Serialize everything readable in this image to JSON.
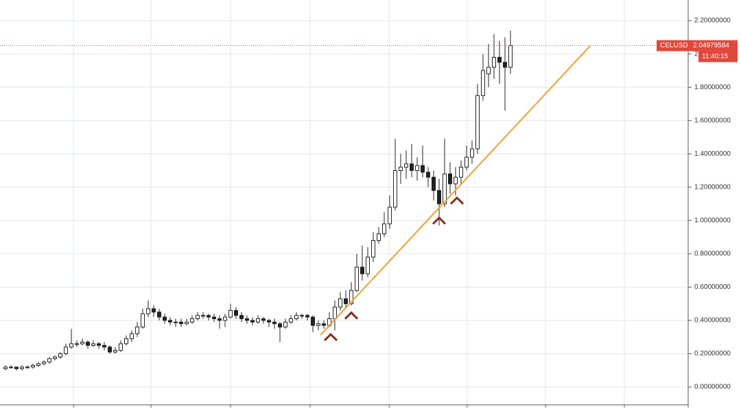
{
  "chart_data": {
    "type": "candlestick",
    "symbol": "CELUSD",
    "last_price": 2.04979584,
    "countdown": "11:40:15",
    "up_color": "#ffffff",
    "down_color": "#222222",
    "wick_color": "#222222",
    "price_line_color": "#e0483a",
    "trend_color": "#f0a030",
    "marker_color": "#8b2a1a",
    "grid": true,
    "xlim": [
      -1,
      124
    ],
    "xticks": [
      12.4,
      26.5,
      41,
      55.5,
      69.9,
      84.1,
      98.4,
      112.75
    ],
    "ylim": [
      -0.107,
      2.324
    ],
    "yticks": [
      {
        "value": 0,
        "label": "0.00000000"
      },
      {
        "value": 0.2,
        "label": "0.20000000"
      },
      {
        "value": 0.4,
        "label": "0.40000000"
      },
      {
        "value": 0.6,
        "label": "0.60000000"
      },
      {
        "value": 0.8,
        "label": "0.80000000"
      },
      {
        "value": 1.0,
        "label": "1.00000000"
      },
      {
        "value": 1.2,
        "label": "1.20000000"
      },
      {
        "value": 1.4,
        "label": "1.40000000"
      },
      {
        "value": 1.6,
        "label": "1.60000000"
      },
      {
        "value": 1.8,
        "label": "1.80000000"
      },
      {
        "value": 2.0,
        "label": "2.00000000"
      },
      {
        "value": 2.2,
        "label": "2.20000000"
      }
    ],
    "open": [
      0.11,
      0.12,
      0.12,
      0.11,
      0.12,
      0.12,
      0.13,
      0.14,
      0.15,
      0.17,
      0.18,
      0.2,
      0.24,
      0.26,
      0.26,
      0.27,
      0.25,
      0.26,
      0.25,
      0.24,
      0.21,
      0.22,
      0.26,
      0.29,
      0.32,
      0.36,
      0.44,
      0.47,
      0.45,
      0.42,
      0.4,
      0.39,
      0.39,
      0.38,
      0.39,
      0.41,
      0.43,
      0.43,
      0.42,
      0.41,
      0.4,
      0.42,
      0.46,
      0.43,
      0.41,
      0.4,
      0.39,
      0.41,
      0.4,
      0.39,
      0.38,
      0.36,
      0.39,
      0.41,
      0.43,
      0.43,
      0.42,
      0.37,
      0.38,
      0.37,
      0.41,
      0.48,
      0.53,
      0.5,
      0.58,
      0.72,
      0.68,
      0.78,
      0.88,
      0.92,
      0.98,
      1.08,
      1.3,
      1.32,
      1.34,
      1.3,
      1.33,
      1.29,
      1.26,
      1.18,
      1.1,
      1.28,
      1.22,
      1.26,
      1.32,
      1.38,
      1.43,
      1.75,
      1.88,
      1.92,
      1.98,
      1.95,
      1.92
    ],
    "high": [
      0.13,
      0.13,
      0.12,
      0.13,
      0.13,
      0.14,
      0.15,
      0.16,
      0.18,
      0.19,
      0.21,
      0.26,
      0.35,
      0.28,
      0.29,
      0.28,
      0.28,
      0.27,
      0.27,
      0.25,
      0.24,
      0.28,
      0.31,
      0.34,
      0.39,
      0.47,
      0.52,
      0.49,
      0.47,
      0.44,
      0.42,
      0.41,
      0.41,
      0.41,
      0.43,
      0.45,
      0.45,
      0.44,
      0.44,
      0.43,
      0.44,
      0.5,
      0.48,
      0.45,
      0.43,
      0.42,
      0.43,
      0.42,
      0.41,
      0.41,
      0.39,
      0.41,
      0.43,
      0.45,
      0.44,
      0.44,
      0.43,
      0.4,
      0.4,
      0.45,
      0.52,
      0.57,
      0.58,
      0.63,
      0.8,
      0.85,
      0.84,
      0.93,
      0.96,
      1.05,
      1.15,
      1.49,
      1.4,
      1.42,
      1.46,
      1.38,
      1.45,
      1.32,
      1.3,
      1.25,
      1.49,
      1.35,
      1.32,
      1.36,
      1.45,
      1.48,
      1.82,
      2.0,
      2.06,
      2.12,
      2.08,
      2.1,
      2.14
    ],
    "low": [
      0.1,
      0.11,
      0.1,
      0.1,
      0.11,
      0.11,
      0.12,
      0.13,
      0.14,
      0.16,
      0.17,
      0.19,
      0.23,
      0.24,
      0.25,
      0.23,
      0.24,
      0.23,
      0.22,
      0.2,
      0.2,
      0.21,
      0.25,
      0.27,
      0.3,
      0.35,
      0.42,
      0.42,
      0.4,
      0.38,
      0.37,
      0.36,
      0.36,
      0.37,
      0.38,
      0.4,
      0.41,
      0.4,
      0.39,
      0.35,
      0.36,
      0.41,
      0.41,
      0.39,
      0.38,
      0.37,
      0.38,
      0.38,
      0.36,
      0.35,
      0.27,
      0.35,
      0.38,
      0.4,
      0.41,
      0.4,
      0.33,
      0.34,
      0.35,
      0.36,
      0.34,
      0.46,
      0.47,
      0.49,
      0.57,
      0.64,
      0.66,
      0.75,
      0.86,
      0.9,
      0.95,
      1.06,
      1.22,
      1.25,
      1.26,
      1.24,
      1.26,
      1.2,
      1.12,
      0.97,
      1.08,
      1.16,
      1.15,
      1.22,
      1.3,
      1.34,
      1.4,
      1.72,
      1.8,
      1.85,
      1.82,
      1.66,
      1.88
    ],
    "close": [
      0.12,
      0.12,
      0.11,
      0.12,
      0.12,
      0.13,
      0.14,
      0.15,
      0.17,
      0.18,
      0.2,
      0.24,
      0.26,
      0.26,
      0.27,
      0.25,
      0.26,
      0.25,
      0.24,
      0.21,
      0.22,
      0.26,
      0.29,
      0.32,
      0.36,
      0.44,
      0.47,
      0.45,
      0.42,
      0.4,
      0.39,
      0.39,
      0.38,
      0.39,
      0.41,
      0.43,
      0.43,
      0.42,
      0.41,
      0.4,
      0.42,
      0.46,
      0.43,
      0.41,
      0.4,
      0.39,
      0.41,
      0.4,
      0.39,
      0.38,
      0.36,
      0.39,
      0.41,
      0.43,
      0.43,
      0.42,
      0.37,
      0.38,
      0.37,
      0.41,
      0.48,
      0.53,
      0.5,
      0.58,
      0.72,
      0.68,
      0.78,
      0.88,
      0.92,
      0.98,
      1.08,
      1.3,
      1.32,
      1.34,
      1.3,
      1.33,
      1.29,
      1.26,
      1.18,
      1.1,
      1.28,
      1.22,
      1.26,
      1.32,
      1.38,
      1.43,
      1.75,
      1.9,
      1.92,
      1.98,
      1.95,
      1.92,
      2.04979584
    ],
    "trendline": {
      "x": [
        57.4,
        106.5
      ],
      "y": [
        0.313,
        2.048
      ]
    },
    "markers": {
      "x": [
        59.25,
        63,
        79,
        82.25
      ],
      "y": [
        0.3,
        0.43,
        1.0,
        1.12
      ]
    }
  }
}
